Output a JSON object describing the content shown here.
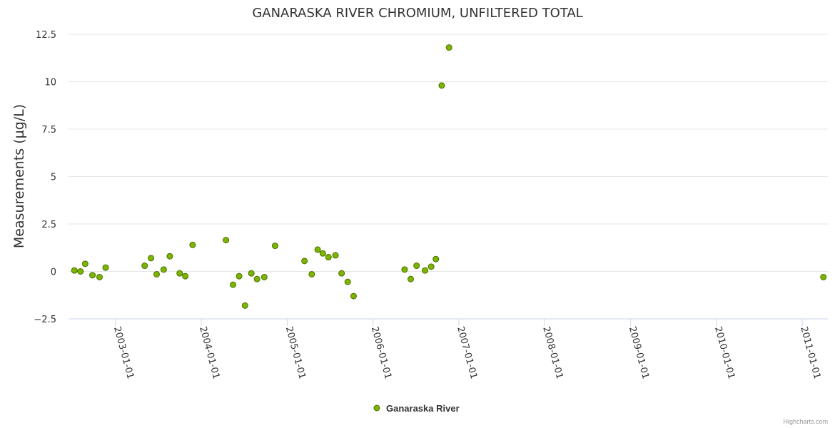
{
  "chart_data": {
    "type": "scatter",
    "title": "GANARASKA RIVER CHROMIUM, UNFILTERED TOTAL",
    "ylabel": "Measurements (µg/L)",
    "xlabel": "",
    "ylim": [
      -2.5,
      12.5
    ],
    "yticks": [
      -2.5,
      0,
      2.5,
      5,
      7.5,
      10,
      12.5
    ],
    "ytick_labels": [
      "−2.5",
      "0",
      "2.5",
      "5",
      "7.5",
      "10",
      "12.5"
    ],
    "xlim": [
      "2002-06-15",
      "2011-04-20"
    ],
    "xticks": [
      "2003-01-01",
      "2004-01-01",
      "2005-01-01",
      "2006-01-01",
      "2007-01-01",
      "2008-01-01",
      "2009-01-01",
      "2010-01-01",
      "2011-01-01"
    ],
    "color": "#7cb500",
    "legend": {
      "position": "bottom-center"
    },
    "credits": "Highcharts.com",
    "series": [
      {
        "name": "Ganaraska River",
        "points": [
          [
            "2002-07-10",
            0.05
          ],
          [
            "2002-08-05",
            0.0
          ],
          [
            "2002-08-25",
            0.4
          ],
          [
            "2002-09-25",
            -0.2
          ],
          [
            "2002-10-25",
            -0.3
          ],
          [
            "2002-11-20",
            0.2
          ],
          [
            "2003-05-05",
            0.3
          ],
          [
            "2003-06-01",
            0.7
          ],
          [
            "2003-06-25",
            -0.15
          ],
          [
            "2003-07-25",
            0.1
          ],
          [
            "2003-08-20",
            0.8
          ],
          [
            "2003-10-01",
            -0.1
          ],
          [
            "2003-10-25",
            -0.25
          ],
          [
            "2003-11-25",
            1.4
          ],
          [
            "2004-04-15",
            1.65
          ],
          [
            "2004-05-15",
            -0.7
          ],
          [
            "2004-06-10",
            -0.25
          ],
          [
            "2004-07-05",
            -1.8
          ],
          [
            "2004-08-01",
            -0.1
          ],
          [
            "2004-08-25",
            -0.4
          ],
          [
            "2004-09-25",
            -0.3
          ],
          [
            "2004-11-10",
            1.35
          ],
          [
            "2005-03-15",
            0.55
          ],
          [
            "2005-04-15",
            -0.15
          ],
          [
            "2005-05-10",
            1.15
          ],
          [
            "2005-06-01",
            0.95
          ],
          [
            "2005-06-25",
            0.75
          ],
          [
            "2005-07-25",
            0.85
          ],
          [
            "2005-08-20",
            -0.1
          ],
          [
            "2005-09-15",
            -0.55
          ],
          [
            "2005-10-10",
            -1.3
          ],
          [
            "2006-05-15",
            0.1
          ],
          [
            "2006-06-10",
            -0.4
          ],
          [
            "2006-07-05",
            0.3
          ],
          [
            "2006-08-10",
            0.05
          ],
          [
            "2006-09-05",
            0.25
          ],
          [
            "2006-09-25",
            0.65
          ],
          [
            "2006-10-20",
            9.8
          ],
          [
            "2006-11-20",
            11.8
          ],
          [
            "2011-04-01",
            -0.3
          ]
        ]
      }
    ]
  }
}
